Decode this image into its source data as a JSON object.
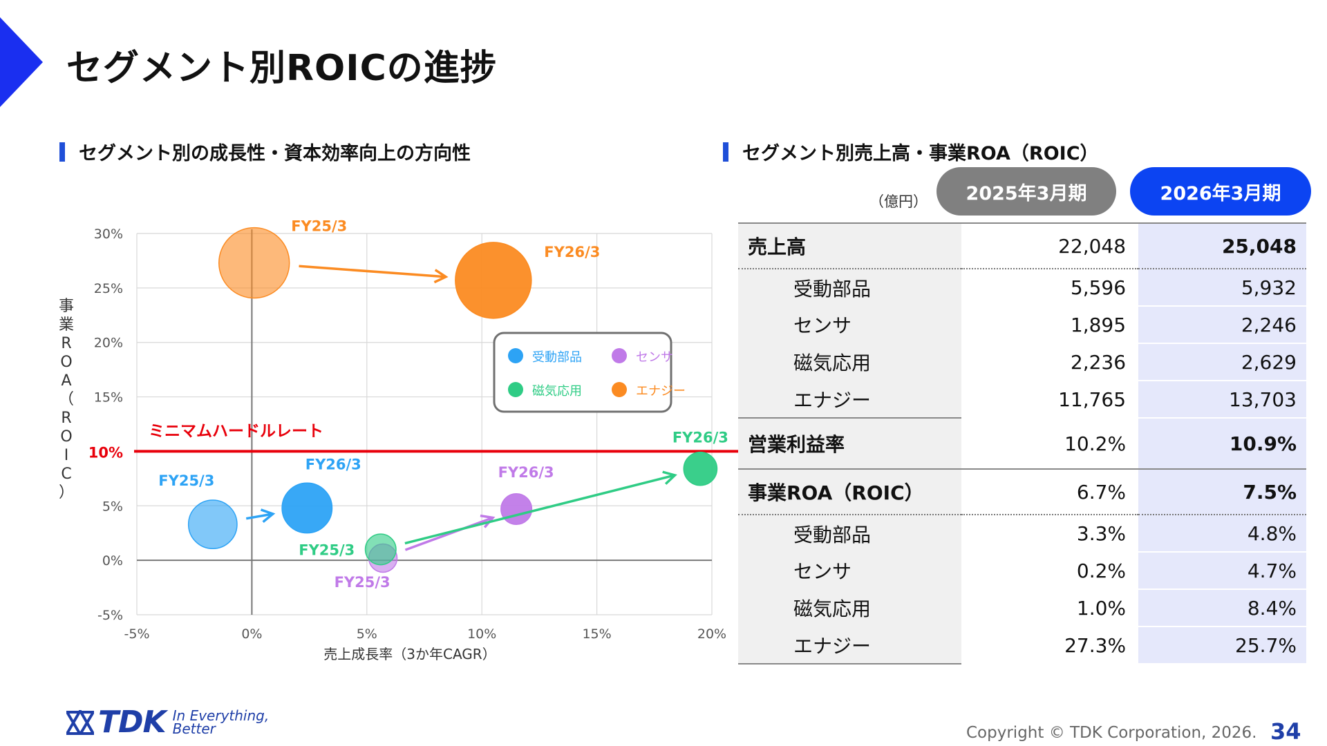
{
  "page": {
    "title": "セグメント別ROICの進捗",
    "left_heading": "セグメント別の成長性・資本効率向上の方向性",
    "right_heading": "セグメント別売上高・事業ROA（ROIC）",
    "copyright": "Copyright  © TDK Corporation, 2026.",
    "page_number": "34",
    "logo_text": "TDK",
    "logo_tagline": "In Everything, Better",
    "accent_color": "#1f4fd8"
  },
  "chart_data": {
    "type": "scatter",
    "title": "",
    "xlabel": "売上成長率（3か年CAGR）",
    "ylabel": "事業ROA（ROIC）",
    "xlim": [
      -5,
      20
    ],
    "ylim": [
      -5,
      30
    ],
    "x_ticks": [
      "-5%",
      "0%",
      "5%",
      "10%",
      "15%",
      "20%"
    ],
    "y_ticks": [
      "-5%",
      "0%",
      "5%",
      "10%",
      "15%",
      "20%",
      "25%",
      "30%"
    ],
    "grid": true,
    "hurdle": {
      "label": "ミニマムハードルレート",
      "value": 10,
      "tick_label": "10%",
      "color": "#e8000b"
    },
    "legend_position": "upper-right",
    "series": [
      {
        "name": "受動部品",
        "color": "#2da3f5",
        "points": [
          {
            "label": "FY25/3",
            "x": -1.7,
            "y": 3.3,
            "size": 5596
          },
          {
            "label": "FY26/3",
            "x": 2.4,
            "y": 4.8,
            "size": 5932
          }
        ]
      },
      {
        "name": "センサ",
        "color": "#c07ae8",
        "points": [
          {
            "label": "FY25/3",
            "x": 5.7,
            "y": 0.2,
            "size": 1895
          },
          {
            "label": "FY26/3",
            "x": 11.5,
            "y": 4.7,
            "size": 2246
          }
        ]
      },
      {
        "name": "磁気応用",
        "color": "#2fcc85",
        "points": [
          {
            "label": "FY25/3",
            "x": 5.6,
            "y": 1.0,
            "size": 2236
          },
          {
            "label": "FY26/3",
            "x": 19.5,
            "y": 8.4,
            "size": 2629
          }
        ]
      },
      {
        "name": "エナジー",
        "color": "#fb8b22",
        "points": [
          {
            "label": "FY25/3",
            "x": 0.1,
            "y": 27.3,
            "size": 11765
          },
          {
            "label": "FY26/3",
            "x": 10.5,
            "y": 25.7,
            "size": 13703
          }
        ]
      }
    ]
  },
  "table": {
    "unit": "（億円）",
    "col1": "2025年3月期",
    "col2": "2026年3月期",
    "rows": [
      {
        "label": "売上高",
        "v1": "22,048",
        "v2": "25,048"
      },
      {
        "label": "受動部品",
        "v1": "5,596",
        "v2": "5,932"
      },
      {
        "label": "センサ",
        "v1": "1,895",
        "v2": "2,246"
      },
      {
        "label": "磁気応用",
        "v1": "2,236",
        "v2": "2,629"
      },
      {
        "label": "エナジー",
        "v1": "11,765",
        "v2": "13,703"
      },
      {
        "label": "営業利益率",
        "v1": "10.2%",
        "v2": "10.9%"
      },
      {
        "label": "事業ROA（ROIC）",
        "v1": "6.7%",
        "v2": "7.5%"
      },
      {
        "label": "受動部品",
        "v1": "3.3%",
        "v2": "4.8%"
      },
      {
        "label": "センサ",
        "v1": "0.2%",
        "v2": "4.7%"
      },
      {
        "label": "磁気応用",
        "v1": "1.0%",
        "v2": "8.4%"
      },
      {
        "label": "エナジー",
        "v1": "27.3%",
        "v2": "25.7%"
      }
    ]
  }
}
